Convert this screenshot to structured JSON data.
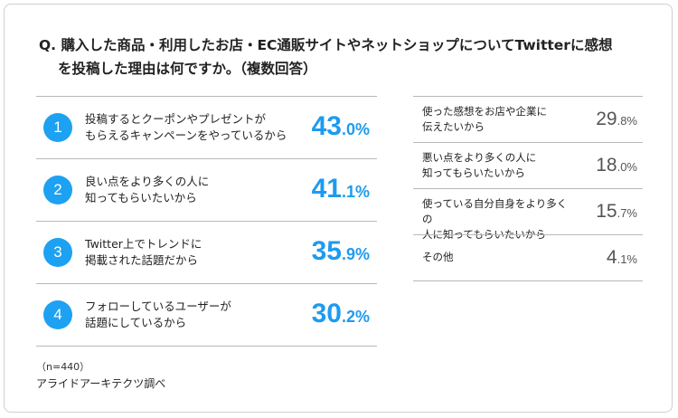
{
  "question": {
    "line1": "Q. 購入した商品・利用したお店・EC通販サイトやネットショップについてTwitterに感想",
    "line2": "を投稿した理由は何ですか。（複数回答）"
  },
  "chart_data": {
    "type": "table",
    "categories": [
      "投稿するとクーポンやプレゼントがもらえるキャンペーンをやっているから",
      "良い点をより多くの人に知ってもらいたいから",
      "Twitter上でトレンドに掲載された話題だから",
      "フォローしているユーザーが話題にしているから",
      "使った感想をお店や企業に伝えたいから",
      "悪い点をより多くの人に知ってもらいたいから",
      "使っている自分自身をより多くの人に知ってもらいたいから",
      "その他"
    ],
    "values": [
      43.0,
      41.1,
      35.9,
      30.2,
      29.8,
      18.0,
      15.7,
      4.1
    ],
    "unit": "%",
    "ranked": [
      {
        "rank": "1",
        "line1": "投稿するとクーポンやプレゼントが",
        "line2": "もらえるキャンペーンをやっているから",
        "int": "43",
        "dec": ".0%",
        "value": 43.0
      },
      {
        "rank": "2",
        "line1": "良い点をより多くの人に",
        "line2": "知ってもらいたいから",
        "int": "41",
        "dec": ".1%",
        "value": 41.1
      },
      {
        "rank": "3",
        "line1": "Twitter上でトレンドに",
        "line2": "掲載された話題だから",
        "int": "35",
        "dec": ".9%",
        "value": 35.9
      },
      {
        "rank": "4",
        "line1": "フォローしているユーザーが",
        "line2": "話題にしているから",
        "int": "30",
        "dec": ".2%",
        "value": 30.2
      }
    ],
    "others": [
      {
        "line1": "使った感想をお店や企業に",
        "line2": "伝えたいから",
        "int": "29",
        "dec": ".8%",
        "value": 29.8
      },
      {
        "line1": "悪い点をより多くの人に",
        "line2": "知ってもらいたいから",
        "int": "18",
        "dec": ".0%",
        "value": 18.0
      },
      {
        "line1": "使っている自分自身をより多くの",
        "line2": "人に知ってもらいたいから",
        "int": "15",
        "dec": ".7%",
        "value": 15.7
      },
      {
        "line1": "その他",
        "line2": "",
        "int": "4",
        "dec": ".1%",
        "value": 4.1
      }
    ]
  },
  "footer": {
    "note": "（n=440）",
    "source": "アライドアーキテクツ調べ"
  },
  "colors": {
    "accent": "#1da1f2",
    "value_primary": "#1d9bf0",
    "value_secondary": "#555555"
  }
}
